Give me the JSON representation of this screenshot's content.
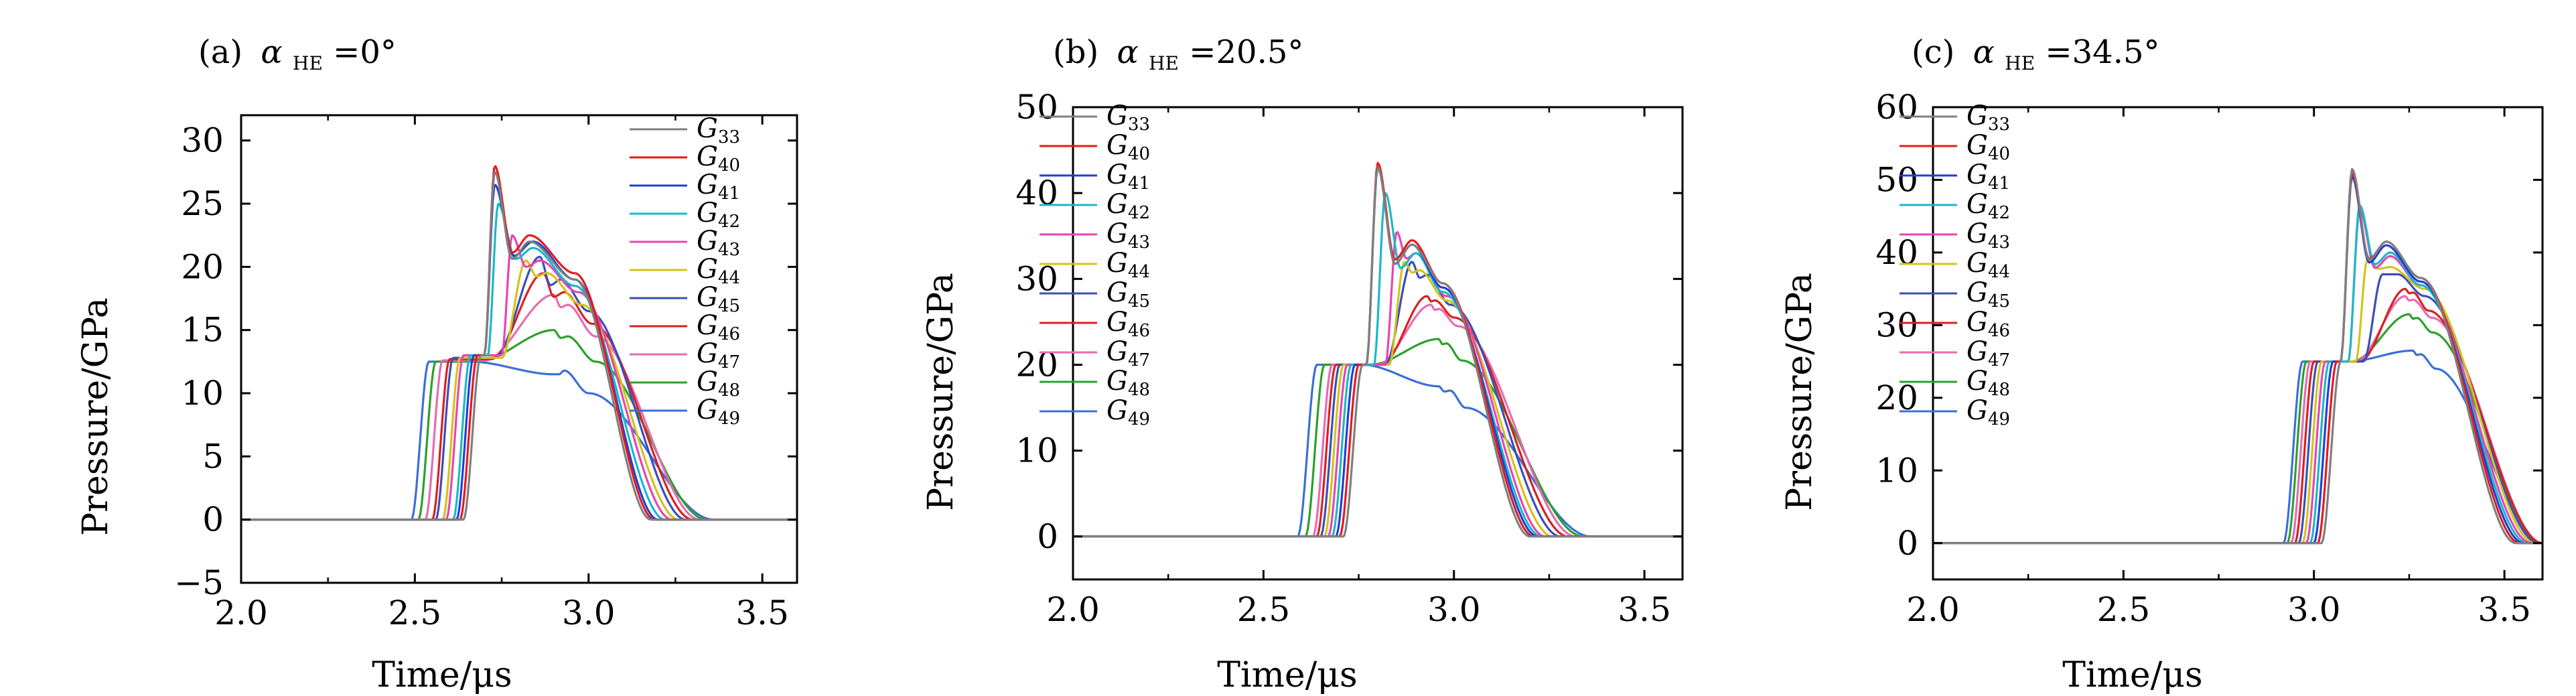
{
  "chart_data": [
    {
      "type": "line",
      "panel_label": "(a)",
      "alpha_symbol": "α",
      "alpha_subscript": "HE",
      "alpha_value": "=0°",
      "xlabel": "Time/μs",
      "ylabel": "Pressure/GPa",
      "xlim": [
        2.0,
        3.6
      ],
      "ylim": [
        -5,
        32
      ],
      "xticks": [
        2.0,
        2.5,
        3.0,
        3.5
      ],
      "xtick_labels": [
        "2.0",
        "2.5",
        "3.0",
        "3.5"
      ],
      "yticks": [
        -5,
        0,
        5,
        10,
        15,
        20,
        25,
        30
      ],
      "ytick_labels": [
        "−5",
        "0",
        "5",
        "10",
        "15",
        "20",
        "25",
        "30"
      ],
      "legend_position": "top-right",
      "grid": false,
      "series_profile": [
        {
          "name_letter": "G",
          "name_sub": "33",
          "color": "#7f7f7f",
          "t0": 2.69,
          "plateau": 13.0,
          "peak": 27.5,
          "t_peak": 2.73,
          "hump": 22.0,
          "t_hump": 2.83,
          "tail": 19.0,
          "t_tail": 2.96,
          "t_end": 3.18
        },
        {
          "name_letter": "G",
          "name_sub": "40",
          "color": "#e41a1c",
          "t0": 2.68,
          "plateau": 13.0,
          "peak": 28.0,
          "t_peak": 2.73,
          "hump": 22.5,
          "t_hump": 2.83,
          "tail": 19.5,
          "t_tail": 2.96,
          "t_end": 3.19
        },
        {
          "name_letter": "G",
          "name_sub": "41",
          "color": "#1f3fd6",
          "t0": 2.67,
          "plateau": 13.0,
          "peak": 26.5,
          "t_peak": 2.73,
          "hump": 22.0,
          "t_hump": 2.84,
          "tail": 19.0,
          "t_tail": 2.96,
          "t_end": 3.2
        },
        {
          "name_letter": "G",
          "name_sub": "42",
          "color": "#1ab8c8",
          "t0": 2.66,
          "plateau": 13.0,
          "peak": 25.0,
          "t_peak": 2.74,
          "hump": 21.5,
          "t_hump": 2.84,
          "tail": 18.5,
          "t_tail": 2.96,
          "t_end": 3.22
        },
        {
          "name_letter": "G",
          "name_sub": "43",
          "color": "#e645b4",
          "t0": 2.64,
          "plateau": 13.0,
          "peak": 22.5,
          "t_peak": 2.78,
          "hump": 20.5,
          "t_hump": 2.86,
          "tail": 18.0,
          "t_tail": 2.97,
          "t_end": 3.24
        },
        {
          "name_letter": "G",
          "name_sub": "44",
          "color": "#d4c21a",
          "t0": 2.63,
          "plateau": 12.8,
          "peak": 20.5,
          "t_peak": 2.82,
          "hump": 19.5,
          "t_hump": 2.88,
          "tail": 17.0,
          "t_tail": 2.98,
          "t_end": 3.26
        },
        {
          "name_letter": "G",
          "name_sub": "45",
          "color": "#3a4fb8",
          "t0": 2.61,
          "plateau": 12.8,
          "peak": 20.8,
          "t_peak": 2.86,
          "hump": 19.0,
          "t_hump": 2.92,
          "tail": 16.5,
          "t_tail": 3.0,
          "t_end": 3.28
        },
        {
          "name_letter": "G",
          "name_sub": "46",
          "color": "#d92020",
          "t0": 2.6,
          "plateau": 12.7,
          "peak": 19.5,
          "t_peak": 2.87,
          "hump": 18.0,
          "t_hump": 2.93,
          "tail": 15.5,
          "t_tail": 3.01,
          "t_end": 3.3
        },
        {
          "name_letter": "G",
          "name_sub": "47",
          "color": "#e86ab5",
          "t0": 2.58,
          "plateau": 12.6,
          "peak": 17.8,
          "t_peak": 2.9,
          "hump": 17.0,
          "t_hump": 2.94,
          "tail": 14.5,
          "t_tail": 3.02,
          "t_end": 3.32
        },
        {
          "name_letter": "G",
          "name_sub": "48",
          "color": "#2ca02c",
          "t0": 2.56,
          "plateau": 12.5,
          "peak": 15.0,
          "t_peak": 2.9,
          "hump": 14.5,
          "t_hump": 2.94,
          "tail": 12.5,
          "t_tail": 3.02,
          "t_end": 3.34
        },
        {
          "name_letter": "G",
          "name_sub": "49",
          "color": "#3b6fd8",
          "t0": 2.54,
          "plateau": 12.5,
          "peak": 11.5,
          "t_peak": 2.9,
          "hump": 11.8,
          "t_hump": 2.93,
          "tail": 10.0,
          "t_tail": 3.0,
          "t_end": 3.36
        }
      ]
    },
    {
      "type": "line",
      "panel_label": "(b)",
      "alpha_symbol": "α",
      "alpha_subscript": "HE",
      "alpha_value": "=20.5°",
      "xlabel": "Time/μs",
      "ylabel": "Pressure/GPa",
      "xlim": [
        2.0,
        3.6
      ],
      "ylim": [
        -5,
        50
      ],
      "xticks": [
        2.0,
        2.5,
        3.0,
        3.5
      ],
      "xtick_labels": [
        "2.0",
        "2.5",
        "3.0",
        "3.5"
      ],
      "yticks": [
        0,
        10,
        20,
        30,
        40,
        50
      ],
      "ytick_labels": [
        "0",
        "10",
        "20",
        "30",
        "40",
        "50"
      ],
      "legend_position": "top-left",
      "grid": false,
      "series_profile": [
        {
          "name_letter": "G",
          "name_sub": "33",
          "color": "#7f7f7f",
          "t0": 2.76,
          "plateau": 20.0,
          "peak": 43.0,
          "t_peak": 2.8,
          "hump": 34.0,
          "t_hump": 2.89,
          "tail": 29.5,
          "t_tail": 2.97,
          "t_end": 3.2
        },
        {
          "name_letter": "G",
          "name_sub": "40",
          "color": "#e41a1c",
          "t0": 2.75,
          "plateau": 20.0,
          "peak": 43.5,
          "t_peak": 2.8,
          "hump": 34.5,
          "t_hump": 2.89,
          "tail": 29.5,
          "t_tail": 2.97,
          "t_end": 3.21
        },
        {
          "name_letter": "G",
          "name_sub": "41",
          "color": "#1f3fd6",
          "t0": 2.74,
          "plateau": 20.0,
          "peak": 43.0,
          "t_peak": 2.8,
          "hump": 34.0,
          "t_hump": 2.89,
          "tail": 29.0,
          "t_tail": 2.97,
          "t_end": 3.22
        },
        {
          "name_letter": "G",
          "name_sub": "42",
          "color": "#1ab8c8",
          "t0": 2.73,
          "plateau": 20.0,
          "peak": 40.0,
          "t_peak": 2.82,
          "hump": 33.0,
          "t_hump": 2.9,
          "tail": 28.5,
          "t_tail": 2.97,
          "t_end": 3.23
        },
        {
          "name_letter": "G",
          "name_sub": "43",
          "color": "#e645b4",
          "t0": 2.72,
          "plateau": 20.0,
          "peak": 35.5,
          "t_peak": 2.85,
          "hump": 33.0,
          "t_hump": 2.9,
          "tail": 28.0,
          "t_tail": 2.98,
          "t_end": 3.24
        },
        {
          "name_letter": "G",
          "name_sub": "44",
          "color": "#d4c21a",
          "t0": 2.71,
          "plateau": 20.0,
          "peak": 32.0,
          "t_peak": 2.87,
          "hump": 31.0,
          "t_hump": 2.91,
          "tail": 27.5,
          "t_tail": 2.98,
          "t_end": 3.26
        },
        {
          "name_letter": "G",
          "name_sub": "45",
          "color": "#3a4fb8",
          "t0": 2.7,
          "plateau": 20.0,
          "peak": 32.0,
          "t_peak": 2.89,
          "hump": 30.5,
          "t_hump": 2.93,
          "tail": 27.0,
          "t_tail": 2.99,
          "t_end": 3.28
        },
        {
          "name_letter": "G",
          "name_sub": "46",
          "color": "#d92020",
          "t0": 2.69,
          "plateau": 20.0,
          "peak": 28.0,
          "t_peak": 2.93,
          "hump": 27.5,
          "t_hump": 2.95,
          "tail": 25.5,
          "t_tail": 3.0,
          "t_end": 3.3
        },
        {
          "name_letter": "G",
          "name_sub": "47",
          "color": "#e86ab5",
          "t0": 2.68,
          "plateau": 20.0,
          "peak": 27.0,
          "t_peak": 2.94,
          "hump": 26.5,
          "t_hump": 2.96,
          "tail": 24.5,
          "t_tail": 3.01,
          "t_end": 3.32
        },
        {
          "name_letter": "G",
          "name_sub": "48",
          "color": "#2ca02c",
          "t0": 2.66,
          "plateau": 20.0,
          "peak": 23.0,
          "t_peak": 2.96,
          "hump": 22.5,
          "t_hump": 2.98,
          "tail": 20.5,
          "t_tail": 3.02,
          "t_end": 3.34
        },
        {
          "name_letter": "G",
          "name_sub": "49",
          "color": "#3b6fd8",
          "t0": 2.64,
          "plateau": 20.0,
          "peak": 17.5,
          "t_peak": 2.96,
          "hump": 17.0,
          "t_hump": 2.99,
          "tail": 15.0,
          "t_tail": 3.03,
          "t_end": 3.36
        }
      ]
    },
    {
      "type": "line",
      "panel_label": "(c)",
      "alpha_symbol": "α",
      "alpha_subscript": "HE",
      "alpha_value": "=34.5°",
      "xlabel": "Time/μs",
      "ylabel": "Pressure/GPa",
      "xlim": [
        2.0,
        3.6
      ],
      "ylim": [
        -5,
        60
      ],
      "xticks": [
        2.0,
        2.5,
        3.0,
        3.5
      ],
      "xtick_labels": [
        "2.0",
        "2.5",
        "3.0",
        "3.5"
      ],
      "yticks": [
        0,
        10,
        20,
        30,
        40,
        50,
        60
      ],
      "ytick_labels": [
        "0",
        "10",
        "20",
        "30",
        "40",
        "50",
        "60"
      ],
      "legend_position": "top-left",
      "grid": false,
      "series_profile": [
        {
          "name_letter": "G",
          "name_sub": "33",
          "color": "#7f7f7f",
          "t0": 3.07,
          "plateau": 25.0,
          "peak": 51.5,
          "t_peak": 3.1,
          "hump": 41.5,
          "t_hump": 3.19,
          "tail": 36.5,
          "t_tail": 3.28,
          "t_end": 3.53
        },
        {
          "name_letter": "G",
          "name_sub": "40",
          "color": "#e41a1c",
          "t0": 3.06,
          "plateau": 25.0,
          "peak": 51.0,
          "t_peak": 3.1,
          "hump": 41.5,
          "t_hump": 3.19,
          "tail": 36.5,
          "t_tail": 3.28,
          "t_end": 3.54
        },
        {
          "name_letter": "G",
          "name_sub": "41",
          "color": "#1f3fd6",
          "t0": 3.05,
          "plateau": 25.0,
          "peak": 50.5,
          "t_peak": 3.1,
          "hump": 41.0,
          "t_hump": 3.19,
          "tail": 36.0,
          "t_tail": 3.28,
          "t_end": 3.55
        },
        {
          "name_letter": "G",
          "name_sub": "42",
          "color": "#1ab8c8",
          "t0": 3.04,
          "plateau": 25.0,
          "peak": 46.5,
          "t_peak": 3.12,
          "hump": 40.0,
          "t_hump": 3.2,
          "tail": 35.5,
          "t_tail": 3.28,
          "t_end": 3.56
        },
        {
          "name_letter": "G",
          "name_sub": "43",
          "color": "#e645b4",
          "t0": 3.03,
          "plateau": 25.0,
          "peak": 46.0,
          "t_peak": 3.12,
          "hump": 39.5,
          "t_hump": 3.2,
          "tail": 35.5,
          "t_tail": 3.28,
          "t_end": 3.57
        },
        {
          "name_letter": "G",
          "name_sub": "44",
          "color": "#d4c21a",
          "t0": 3.02,
          "plateau": 25.0,
          "peak": 39.0,
          "t_peak": 3.14,
          "hump": 38.0,
          "t_hump": 3.2,
          "tail": 35.0,
          "t_tail": 3.29,
          "t_end": 3.58
        },
        {
          "name_letter": "G",
          "name_sub": "45",
          "color": "#3a4fb8",
          "t0": 3.01,
          "plateau": 25.0,
          "peak": 37.0,
          "t_peak": 3.18,
          "hump": 37.0,
          "t_hump": 3.22,
          "tail": 34.0,
          "t_tail": 3.29,
          "t_end": 3.59
        },
        {
          "name_letter": "G",
          "name_sub": "46",
          "color": "#d92020",
          "t0": 3.0,
          "plateau": 25.0,
          "peak": 35.0,
          "t_peak": 3.24,
          "hump": 34.5,
          "t_hump": 3.26,
          "tail": 32.0,
          "t_tail": 3.3,
          "t_end": 3.6
        },
        {
          "name_letter": "G",
          "name_sub": "47",
          "color": "#e86ab5",
          "t0": 2.99,
          "plateau": 25.0,
          "peak": 34.0,
          "t_peak": 3.24,
          "hump": 33.5,
          "t_hump": 3.26,
          "tail": 31.0,
          "t_tail": 3.31,
          "t_end": 3.6
        },
        {
          "name_letter": "G",
          "name_sub": "48",
          "color": "#2ca02c",
          "t0": 2.98,
          "plateau": 25.0,
          "peak": 31.5,
          "t_peak": 3.25,
          "hump": 31.0,
          "t_hump": 3.27,
          "tail": 29.0,
          "t_tail": 3.31,
          "t_end": 3.6
        },
        {
          "name_letter": "G",
          "name_sub": "49",
          "color": "#3b6fd8",
          "t0": 2.97,
          "plateau": 25.0,
          "peak": 26.5,
          "t_peak": 3.26,
          "hump": 26.0,
          "t_hump": 3.28,
          "tail": 24.0,
          "t_tail": 3.32,
          "t_end": 3.6
        }
      ]
    }
  ]
}
